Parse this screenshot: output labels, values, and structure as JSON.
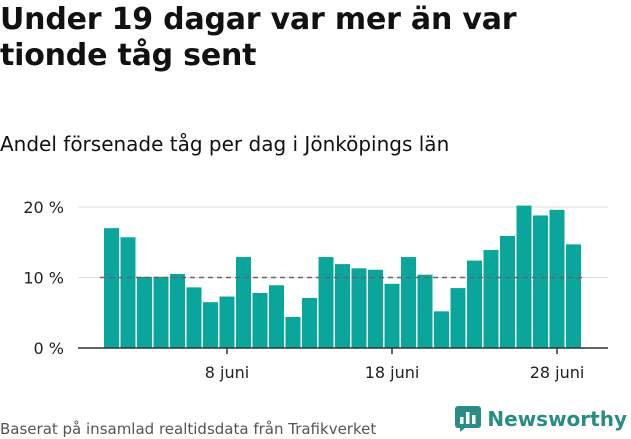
{
  "title": "Under 19 dagar var mer än var tionde tåg sent",
  "subtitle": "Andel försenade tåg per dag i Jönköpings län",
  "source": "Baserat på insamlad realtidsdata från Trafikverket",
  "brand": {
    "name": "Newsworthy",
    "icon": "bar-chart-logo-icon"
  },
  "colors": {
    "bar": "#0aa59b",
    "reference": "#666666",
    "grid": "#dddddd",
    "axis": "#333333",
    "brand": "#2a8c87"
  },
  "chart_data": {
    "type": "bar",
    "x_unit": "day",
    "first_date": "2024-06-01",
    "x": [
      "2024-06-01",
      "2024-06-02",
      "2024-06-03",
      "2024-06-04",
      "2024-06-05",
      "2024-06-06",
      "2024-06-07",
      "2024-06-08",
      "2024-06-09",
      "2024-06-10",
      "2024-06-11",
      "2024-06-12",
      "2024-06-13",
      "2024-06-14",
      "2024-06-15",
      "2024-06-16",
      "2024-06-17",
      "2024-06-18",
      "2024-06-19",
      "2024-06-20",
      "2024-06-21",
      "2024-06-22",
      "2024-06-23",
      "2024-06-24",
      "2024-06-25",
      "2024-06-26",
      "2024-06-27",
      "2024-06-28",
      "2024-06-29"
    ],
    "values": [
      17.0,
      15.7,
      10.1,
      10.1,
      10.5,
      8.6,
      6.5,
      7.3,
      12.9,
      7.8,
      8.9,
      4.4,
      7.1,
      12.9,
      11.9,
      11.3,
      11.1,
      9.1,
      12.9,
      10.4,
      5.2,
      8.5,
      12.4,
      13.9,
      15.9,
      20.2,
      18.8,
      19.6,
      14.7
    ],
    "ylim": [
      0,
      20
    ],
    "yticks": [
      0,
      10,
      20
    ],
    "ytick_labels": [
      "0 %",
      "10 %",
      "20 %"
    ],
    "xticks": [
      "2024-06-08",
      "2024-06-18",
      "2024-06-28"
    ],
    "xtick_labels": [
      "8 juni",
      "18 juni",
      "28 juni"
    ],
    "reference_line": 10,
    "grid": true,
    "legend": "none"
  }
}
